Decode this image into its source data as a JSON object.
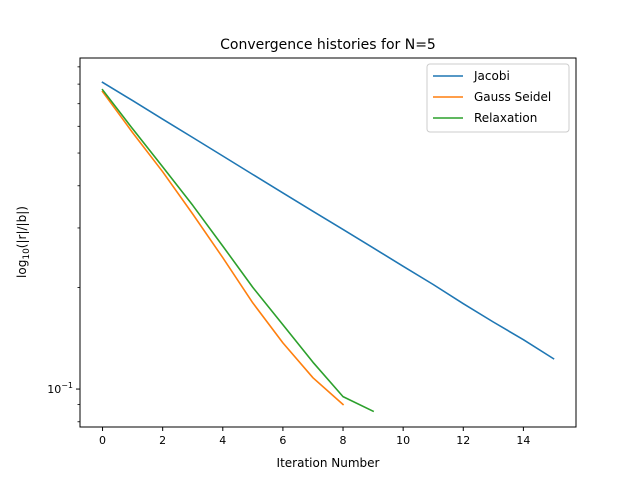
{
  "chart_data": {
    "type": "line",
    "title": "Convergence histories for N=5",
    "xlabel": "Iteration Number",
    "ylabel_parts": [
      "log",
      "10",
      "(|r|/|b|)"
    ],
    "xlim": [
      -0.75,
      15.75
    ],
    "ylim": [
      0.0772,
      0.956
    ],
    "yscale": "log",
    "xticks": [
      0,
      2,
      4,
      6,
      8,
      10,
      12,
      14
    ],
    "yticks": [
      {
        "value": 0.1,
        "base": "10",
        "exp": "−1"
      }
    ],
    "grid": false,
    "legend_position": "top-right",
    "series": [
      {
        "name": "Jacobi",
        "color": "#1f77b4",
        "x": [
          0,
          1,
          2,
          3,
          4,
          5,
          6,
          7,
          8,
          9,
          10,
          11,
          12,
          13,
          14,
          15
        ],
        "y": [
          0.81,
          0.715,
          0.63,
          0.556,
          0.49,
          0.432,
          0.381,
          0.336,
          0.297,
          0.262,
          0.231,
          0.204,
          0.179,
          0.158,
          0.14,
          0.123
        ]
      },
      {
        "name": "Gauss Seidel",
        "color": "#ff7f0e",
        "x": [
          0,
          1,
          2,
          3,
          4,
          5,
          6,
          7,
          8
        ],
        "y": [
          0.76,
          0.575,
          0.44,
          0.33,
          0.245,
          0.18,
          0.137,
          0.108,
          0.09
        ]
      },
      {
        "name": "Relaxation",
        "color": "#2ca02c",
        "x": [
          0,
          1,
          2,
          3,
          4,
          5,
          6,
          7,
          8,
          9
        ],
        "y": [
          0.77,
          0.59,
          0.455,
          0.35,
          0.265,
          0.2,
          0.155,
          0.12,
          0.095,
          0.086
        ]
      }
    ]
  }
}
